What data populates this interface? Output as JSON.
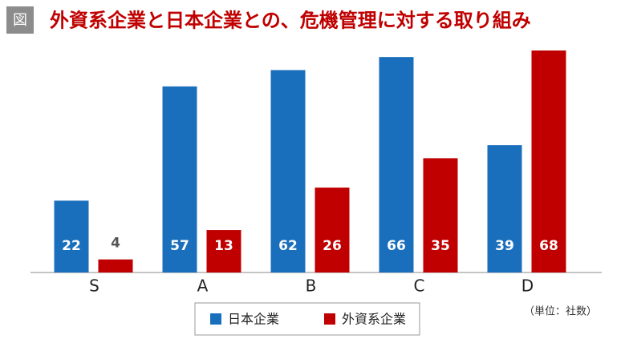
{
  "badge": "図",
  "chart_data": {
    "type": "bar",
    "title": "外資系企業と日本企業との、危機管理に対する取り組み",
    "categories": [
      "S",
      "A",
      "B",
      "C",
      "D"
    ],
    "series": [
      {
        "name": "日本企業",
        "color": "#1a6fbd",
        "values": [
          22,
          57,
          62,
          66,
          39
        ]
      },
      {
        "name": "外資系企業",
        "color": "#c00000",
        "values": [
          4,
          13,
          26,
          35,
          68
        ]
      }
    ],
    "unit_note": "（単位：社数）"
  }
}
